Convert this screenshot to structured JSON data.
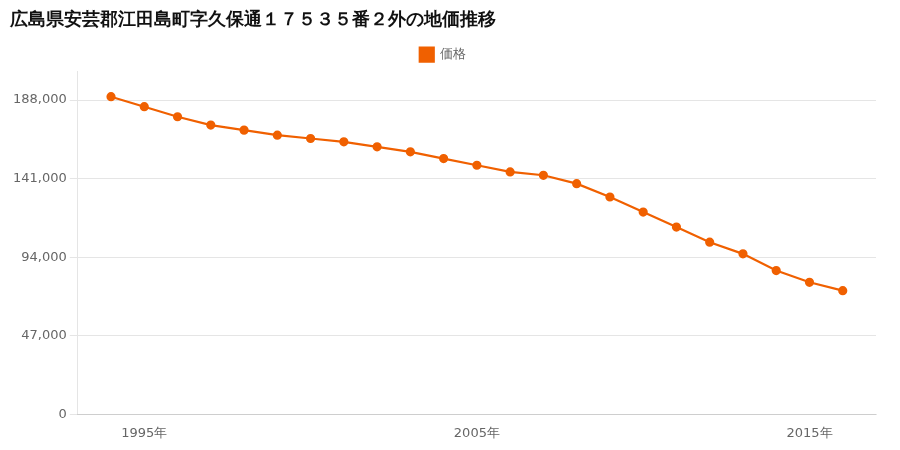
{
  "chart_data": {
    "type": "line",
    "title": "広島県安芸郡江田島町字久保通１７５３５番２外の地価推移",
    "x": [
      1994,
      1995,
      1996,
      1997,
      1998,
      1999,
      2000,
      2001,
      2002,
      2003,
      2004,
      2005,
      2006,
      2007,
      2008,
      2009,
      2010,
      2011,
      2012,
      2013,
      2014,
      2015,
      2016
    ],
    "series": [
      {
        "name": "価格",
        "color": "#F06000",
        "marker": "circle",
        "values": [
          190000,
          184000,
          178000,
          173000,
          170000,
          167000,
          165000,
          163000,
          160000,
          157000,
          153000,
          149000,
          145000,
          143000,
          138000,
          130000,
          121000,
          112000,
          103000,
          96000,
          86000,
          79000,
          74000
        ]
      }
    ],
    "xlim": [
      1993,
      2017
    ],
    "xticks": [
      {
        "value": 1995,
        "label": "1995年"
      },
      {
        "value": 2005,
        "label": "2005年"
      },
      {
        "value": 2015,
        "label": "2015年"
      }
    ],
    "ylim": [
      0,
      205000
    ],
    "yticks": [
      0,
      {
        "value": 47000,
        "label": "47,000"
      },
      {
        "value": 94000,
        "label": "94,000"
      },
      {
        "value": 141000,
        "label": "141,000"
      },
      {
        "value": 188000,
        "label": "188,000"
      }
    ],
    "grid": "y",
    "legend": "top"
  }
}
